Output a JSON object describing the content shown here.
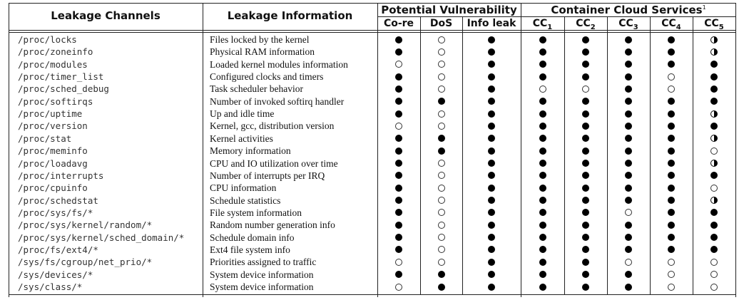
{
  "header": {
    "col_channels": "Leakage Channels",
    "col_information": "Leakage Information",
    "group_vuln": "Potential Vulnerability",
    "group_cloud": "Container Cloud Services",
    "group_cloud_sup": "1",
    "sub": [
      "Co-re",
      "DoS",
      "Info leak"
    ],
    "cc_base": "CC",
    "cc_subs": [
      "1",
      "2",
      "3",
      "4",
      "5"
    ]
  },
  "legend_symbols": {
    "full": "●",
    "empty": "○",
    "half": "◐"
  },
  "rows": [
    {
      "channel": "/proc/locks",
      "info": "Files locked by the kernel",
      "marks": [
        "full",
        "empty",
        "full",
        "full",
        "full",
        "full",
        "full",
        "half"
      ]
    },
    {
      "channel": "/proc/zoneinfo",
      "info": "Physical RAM information",
      "marks": [
        "full",
        "empty",
        "full",
        "full",
        "full",
        "full",
        "full",
        "half"
      ]
    },
    {
      "channel": "/proc/modules",
      "info": "Loaded kernel modules information",
      "marks": [
        "empty",
        "empty",
        "full",
        "full",
        "full",
        "full",
        "full",
        "full"
      ]
    },
    {
      "channel": "/proc/timer_list",
      "info": "Configured clocks and timers",
      "marks": [
        "full",
        "empty",
        "full",
        "full",
        "full",
        "full",
        "empty",
        "full"
      ]
    },
    {
      "channel": "/proc/sched_debug",
      "info": "Task scheduler behavior",
      "marks": [
        "full",
        "empty",
        "full",
        "empty",
        "empty",
        "full",
        "empty",
        "full"
      ]
    },
    {
      "channel": "/proc/softirqs",
      "info": "Number of invoked softirq handler",
      "marks": [
        "full",
        "full",
        "full",
        "full",
        "full",
        "full",
        "full",
        "full"
      ]
    },
    {
      "channel": "/proc/uptime",
      "info": "Up and idle time",
      "marks": [
        "full",
        "empty",
        "full",
        "full",
        "full",
        "full",
        "full",
        "half"
      ]
    },
    {
      "channel": "/proc/version",
      "info": "Kernel, gcc, distribution version",
      "marks": [
        "empty",
        "empty",
        "full",
        "full",
        "full",
        "full",
        "full",
        "full"
      ]
    },
    {
      "channel": "/proc/stat",
      "info": "Kernel activities",
      "marks": [
        "full",
        "full",
        "full",
        "full",
        "full",
        "full",
        "full",
        "half"
      ]
    },
    {
      "channel": "/proc/meminfo",
      "info": "Memory information",
      "marks": [
        "full",
        "full",
        "full",
        "full",
        "full",
        "full",
        "full",
        "empty"
      ]
    },
    {
      "channel": "/proc/loadavg",
      "info": "CPU and IO utilization over time",
      "marks": [
        "full",
        "empty",
        "full",
        "full",
        "full",
        "full",
        "full",
        "half"
      ]
    },
    {
      "channel": "/proc/interrupts",
      "info": "Number of interrupts per IRQ",
      "marks": [
        "full",
        "empty",
        "full",
        "full",
        "full",
        "full",
        "full",
        "full"
      ]
    },
    {
      "channel": "/proc/cpuinfo",
      "info": "CPU information",
      "marks": [
        "full",
        "empty",
        "full",
        "full",
        "full",
        "full",
        "full",
        "empty"
      ]
    },
    {
      "channel": "/proc/schedstat",
      "info": "Schedule statistics",
      "marks": [
        "full",
        "empty",
        "full",
        "full",
        "full",
        "full",
        "full",
        "half"
      ]
    },
    {
      "channel": "/proc/sys/fs/*",
      "info": "File system information",
      "marks": [
        "full",
        "empty",
        "full",
        "full",
        "full",
        "empty",
        "full",
        "full"
      ]
    },
    {
      "channel": "/proc/sys/kernel/random/*",
      "info": "Random number generation info",
      "marks": [
        "full",
        "empty",
        "full",
        "full",
        "full",
        "full",
        "full",
        "full"
      ]
    },
    {
      "channel": "/proc/sys/kernel/sched_domain/*",
      "info": "Schedule domain info",
      "marks": [
        "full",
        "empty",
        "full",
        "full",
        "full",
        "full",
        "full",
        "full"
      ]
    },
    {
      "channel": "/proc/fs/ext4/*",
      "info": "Ext4 file system info",
      "marks": [
        "full",
        "empty",
        "full",
        "full",
        "full",
        "full",
        "full",
        "full"
      ]
    },
    {
      "channel": "/sys/fs/cgroup/net_prio/*",
      "info": "Priorities assigned to traffic",
      "marks": [
        "empty",
        "empty",
        "full",
        "full",
        "full",
        "empty",
        "empty",
        "empty"
      ]
    },
    {
      "channel": "/sys/devices/*",
      "info": "System device information",
      "marks": [
        "full",
        "full",
        "full",
        "full",
        "full",
        "full",
        "empty",
        "empty"
      ]
    },
    {
      "channel": "/sys/class/*",
      "info": "System device information",
      "marks": [
        "empty",
        "full",
        "full",
        "full",
        "full",
        "full",
        "empty",
        "empty"
      ]
    }
  ]
}
